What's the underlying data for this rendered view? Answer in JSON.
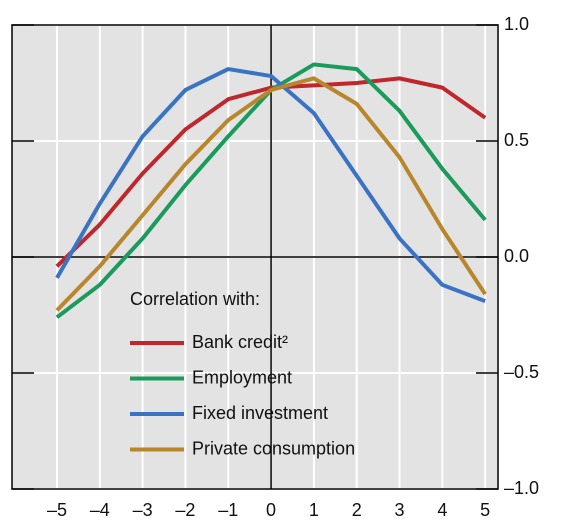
{
  "chart_data": {
    "type": "line",
    "x": [
      -5,
      -4,
      -3,
      -2,
      -1,
      0,
      1,
      2,
      3,
      4,
      5
    ],
    "series": [
      {
        "name": "Bank credit²",
        "color": "#c0272d",
        "values": [
          -0.04,
          0.14,
          0.36,
          0.55,
          0.68,
          0.73,
          0.74,
          0.75,
          0.77,
          0.73,
          0.6
        ]
      },
      {
        "name": "Employment",
        "color": "#1a9a5b",
        "values": [
          -0.26,
          -0.12,
          0.08,
          0.31,
          0.52,
          0.72,
          0.83,
          0.81,
          0.63,
          0.38,
          0.16
        ]
      },
      {
        "name": "Fixed investment",
        "color": "#3b73c4",
        "values": [
          -0.09,
          0.23,
          0.52,
          0.72,
          0.81,
          0.78,
          0.62,
          0.35,
          0.08,
          -0.12,
          -0.19
        ]
      },
      {
        "name": "Private consumption",
        "color": "#b8862c",
        "values": [
          -0.23,
          -0.04,
          0.18,
          0.4,
          0.59,
          0.72,
          0.77,
          0.66,
          0.43,
          0.12,
          -0.16
        ]
      }
    ],
    "legend_title": "Correlation with:",
    "legend": "lower center",
    "xlim": [
      -6.05,
      5.3
    ],
    "ylim": [
      -1.0,
      1.0
    ],
    "xticks": [
      {
        "value": -5,
        "label": "–5"
      },
      {
        "value": -4,
        "label": "–4"
      },
      {
        "value": -3,
        "label": "–3"
      },
      {
        "value": -2,
        "label": "–2"
      },
      {
        "value": -1,
        "label": "–1"
      },
      0,
      1,
      2,
      3,
      4,
      5
    ],
    "yticks": [
      {
        "value": 1.0,
        "label": "1.0"
      },
      {
        "value": 0.5,
        "label": "0.5"
      },
      {
        "value": 0.0,
        "label": "0.0"
      },
      {
        "value": -0.5,
        "label": "–0.5"
      },
      {
        "value": -1.0,
        "label": "–1.0"
      }
    ],
    "grid": true
  }
}
